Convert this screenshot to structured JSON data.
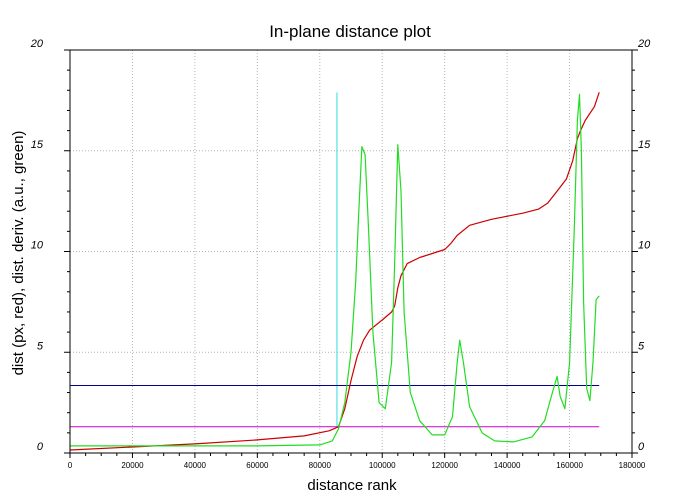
{
  "chart_data": {
    "type": "line",
    "title": "In-plane distance plot",
    "xlabel": "distance rank",
    "ylabel": "dist (px, red), dist. deriv. (a.u., green)",
    "xlim": [
      0,
      180000
    ],
    "ylim": [
      0,
      20
    ],
    "x_ticks": [
      "0",
      "20000",
      "40000",
      "60000",
      "80000",
      "100000",
      "120000",
      "140000",
      "160000",
      "180000"
    ],
    "y_ticks": [
      "0",
      "5",
      "10",
      "15",
      "20"
    ],
    "grid": true,
    "series": [
      {
        "color": "#cc0000",
        "x": [
          0,
          20000,
          40000,
          60000,
          75000,
          83000,
          86000,
          88000,
          90000,
          92000,
          94000,
          96000,
          100000,
          103000,
          104000,
          105000,
          106000,
          108000,
          112000,
          116000,
          120000,
          122000,
          124000,
          128000,
          135000,
          145000,
          150000,
          153000,
          156000,
          159000,
          161000,
          162500,
          163500,
          165000,
          168000,
          169500
        ],
        "y": [
          0.15,
          0.3,
          0.45,
          0.65,
          0.85,
          1.1,
          1.3,
          2.2,
          3.6,
          4.8,
          5.6,
          6.1,
          6.6,
          7.0,
          7.3,
          8.2,
          8.8,
          9.4,
          9.7,
          9.9,
          10.1,
          10.4,
          10.8,
          11.3,
          11.6,
          11.9,
          12.1,
          12.4,
          13.0,
          13.6,
          14.5,
          15.6,
          16.0,
          16.5,
          17.2,
          17.9
        ]
      },
      {
        "color": "#22dd22",
        "x": [
          0,
          20000,
          40000,
          60000,
          80000,
          84000,
          86000,
          88000,
          90000,
          91500,
          92500,
          93500,
          94500,
          95500,
          97000,
          99000,
          101000,
          103000,
          104000,
          105000,
          106000,
          107000,
          109000,
          112000,
          116000,
          120000,
          122500,
          124000,
          124800,
          126000,
          128000,
          132000,
          136000,
          142000,
          148000,
          152000,
          154500,
          156000,
          157000,
          158500,
          160000,
          161500,
          162500,
          163200,
          163800,
          164500,
          165500,
          166500,
          167500,
          168500,
          169500
        ],
        "y": [
          0.35,
          0.35,
          0.35,
          0.35,
          0.4,
          0.6,
          1.2,
          2.5,
          5.0,
          8.5,
          12.0,
          15.2,
          14.8,
          11.5,
          6.0,
          2.5,
          2.2,
          4.5,
          9.5,
          15.3,
          13.0,
          7.0,
          3.0,
          1.6,
          0.9,
          0.9,
          1.8,
          4.5,
          5.6,
          4.5,
          2.3,
          1.0,
          0.6,
          0.55,
          0.8,
          1.6,
          3.0,
          3.8,
          2.8,
          2.2,
          4.5,
          11.0,
          16.5,
          17.8,
          15.0,
          7.5,
          3.2,
          2.6,
          4.5,
          7.6,
          7.8
        ]
      }
    ],
    "reference_lines": [
      {
        "orientation": "vertical",
        "x": 85500,
        "y_range": [
          1.3,
          17.9
        ],
        "color": "#33dddd"
      },
      {
        "orientation": "horizontal",
        "y": 3.35,
        "x_range": [
          0,
          169500
        ],
        "color": "#000088"
      },
      {
        "orientation": "horizontal",
        "y": 1.3,
        "x_range": [
          0,
          169500
        ],
        "color": "#cc00cc"
      }
    ]
  }
}
